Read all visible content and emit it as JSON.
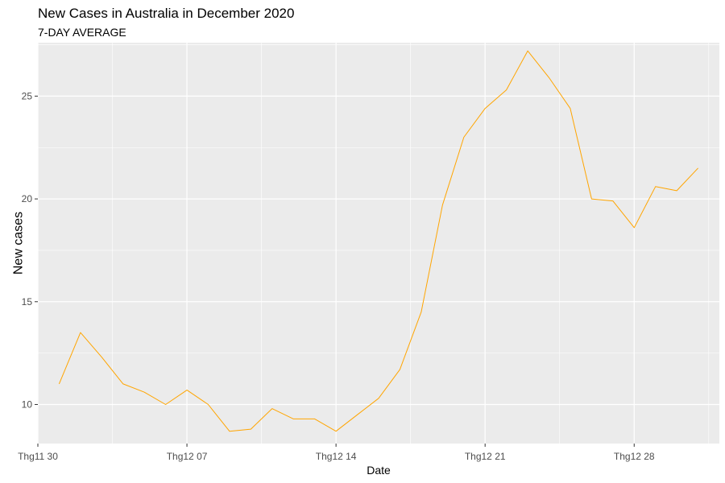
{
  "chart_data": {
    "type": "line",
    "title": "New Cases in Australia in December 2020",
    "subtitle": "7-DAY AVERAGE",
    "xlabel": "Date",
    "ylabel": "New cases",
    "line_color": "#FFA500",
    "ylabel_color": "#FFA500",
    "panel_color": "#EBEBEB",
    "grid": true,
    "xlim": [
      "2020-11-30",
      "2021-01-01"
    ],
    "ylim": [
      8.1,
      27.6
    ],
    "x_ticks": [
      {
        "date": "2020-11-30",
        "label": "Thg11 30"
      },
      {
        "date": "2020-12-07",
        "label": "Thg12 07"
      },
      {
        "date": "2020-12-14",
        "label": "Thg12 14"
      },
      {
        "date": "2020-12-21",
        "label": "Thg12 21"
      },
      {
        "date": "2020-12-28",
        "label": "Thg12 28"
      }
    ],
    "y_ticks": [
      10,
      15,
      20,
      25
    ],
    "points": [
      {
        "x": "2020-12-01",
        "y": 11.0
      },
      {
        "x": "2020-12-02",
        "y": 13.5
      },
      {
        "x": "2020-12-03",
        "y": 12.3
      },
      {
        "x": "2020-12-04",
        "y": 11.0
      },
      {
        "x": "2020-12-05",
        "y": 10.6
      },
      {
        "x": "2020-12-06",
        "y": 10.0
      },
      {
        "x": "2020-12-07",
        "y": 10.7
      },
      {
        "x": "2020-12-08",
        "y": 10.0
      },
      {
        "x": "2020-12-09",
        "y": 8.7
      },
      {
        "x": "2020-12-10",
        "y": 8.8
      },
      {
        "x": "2020-12-11",
        "y": 9.8
      },
      {
        "x": "2020-12-12",
        "y": 9.3
      },
      {
        "x": "2020-12-13",
        "y": 9.3
      },
      {
        "x": "2020-12-14",
        "y": 8.7
      },
      {
        "x": "2020-12-15",
        "y": 9.5
      },
      {
        "x": "2020-12-16",
        "y": 10.3
      },
      {
        "x": "2020-12-17",
        "y": 11.7
      },
      {
        "x": "2020-12-18",
        "y": 14.5
      },
      {
        "x": "2020-12-19",
        "y": 19.7
      },
      {
        "x": "2020-12-20",
        "y": 23.0
      },
      {
        "x": "2020-12-21",
        "y": 24.4
      },
      {
        "x": "2020-12-22",
        "y": 25.3
      },
      {
        "x": "2020-12-23",
        "y": 27.2
      },
      {
        "x": "2020-12-24",
        "y": 25.9
      },
      {
        "x": "2020-12-25",
        "y": 24.4
      },
      {
        "x": "2020-12-26",
        "y": 20.0
      },
      {
        "x": "2020-12-27",
        "y": 19.9
      },
      {
        "x": "2020-12-28",
        "y": 18.6
      },
      {
        "x": "2020-12-29",
        "y": 20.6
      },
      {
        "x": "2020-12-30",
        "y": 20.4
      },
      {
        "x": "2020-12-31",
        "y": 21.5
      }
    ]
  }
}
